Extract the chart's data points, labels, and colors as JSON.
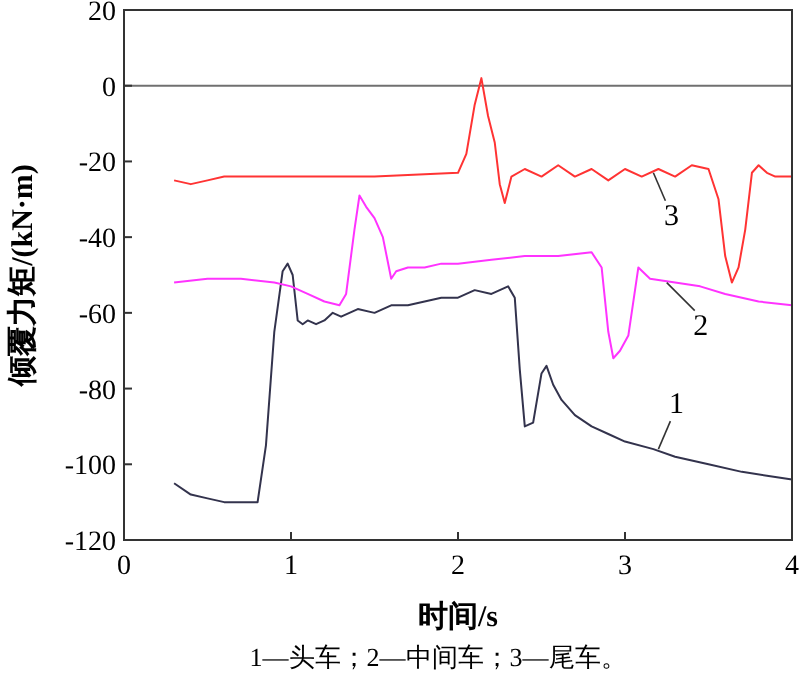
{
  "chart_data": {
    "type": "line",
    "xlabel": "时间/s",
    "ylabel": "倾覆力矩/(kN·m)",
    "xlim": [
      0,
      4
    ],
    "ylim": [
      -120,
      20
    ],
    "xticks": [
      0,
      1,
      2,
      3,
      4
    ],
    "yticks": [
      -120,
      -100,
      -80,
      -60,
      -40,
      -20,
      0,
      20
    ],
    "grid": false,
    "marker": "none",
    "line_style": "solid",
    "ref_lines": [
      {
        "axis": "y",
        "value": 0,
        "color": "#707070"
      }
    ],
    "series": [
      {
        "color": "#33334d",
        "x": [
          0.3,
          0.4,
          0.5,
          0.6,
          0.7,
          0.8,
          0.85,
          0.9,
          0.95,
          0.98,
          1.01,
          1.04,
          1.07,
          1.1,
          1.15,
          1.2,
          1.25,
          1.3,
          1.4,
          1.5,
          1.6,
          1.7,
          1.8,
          1.9,
          2.0,
          2.1,
          2.2,
          2.3,
          2.34,
          2.37,
          2.4,
          2.45,
          2.5,
          2.53,
          2.57,
          2.62,
          2.7,
          2.8,
          2.9,
          3.0,
          3.17,
          3.3,
          3.5,
          3.7,
          3.85,
          4.0
        ],
        "values": [
          -105,
          -108,
          -109,
          -110,
          -110,
          -110,
          -95,
          -65,
          -49,
          -47,
          -50,
          -62,
          -63,
          -62,
          -63,
          -62,
          -60,
          -61,
          -59,
          -60,
          -58,
          -58,
          -57,
          -56,
          -56,
          -54,
          -55,
          -53,
          -56,
          -75,
          -90,
          -89,
          -76,
          -74,
          -79,
          -83,
          -87,
          -90,
          -92,
          -94,
          -96,
          -98,
          -100,
          -102,
          -103,
          -104
        ]
      },
      {
        "color": "#ff33ff",
        "x": [
          0.3,
          0.5,
          0.7,
          0.9,
          1.0,
          1.1,
          1.2,
          1.29,
          1.33,
          1.38,
          1.41,
          1.45,
          1.5,
          1.55,
          1.6,
          1.63,
          1.7,
          1.8,
          1.9,
          2.0,
          2.2,
          2.4,
          2.6,
          2.8,
          2.86,
          2.9,
          2.93,
          2.97,
          3.02,
          3.08,
          3.15,
          3.3,
          3.45,
          3.6,
          3.8,
          4.0
        ],
        "values": [
          -52,
          -51,
          -51,
          -52,
          -53,
          -55,
          -57,
          -58,
          -55,
          -38,
          -29,
          -32,
          -35,
          -40,
          -51,
          -49,
          -48,
          -48,
          -47,
          -47,
          -46,
          -45,
          -45,
          -44,
          -48,
          -65,
          -72,
          -70,
          -66,
          -48,
          -51,
          -52,
          -53,
          -55,
          -57,
          -58
        ]
      },
      {
        "color": "#ff3333",
        "x": [
          0.3,
          0.4,
          0.5,
          0.6,
          0.8,
          1.0,
          1.5,
          2.0,
          2.05,
          2.1,
          2.14,
          2.18,
          2.22,
          2.25,
          2.28,
          2.32,
          2.4,
          2.5,
          2.6,
          2.7,
          2.8,
          2.9,
          3.0,
          3.1,
          3.2,
          3.3,
          3.4,
          3.5,
          3.56,
          3.6,
          3.64,
          3.68,
          3.72,
          3.76,
          3.8,
          3.85,
          3.9,
          4.0
        ],
        "values": [
          -25,
          -26,
          -25,
          -24,
          -24,
          -24,
          -24,
          -23,
          -18,
          -5,
          2,
          -8,
          -15,
          -26,
          -31,
          -24,
          -22,
          -24,
          -21,
          -24,
          -22,
          -25,
          -22,
          -24,
          -22,
          -24,
          -21,
          -22,
          -30,
          -45,
          -52,
          -48,
          -38,
          -23,
          -21,
          -23,
          -24,
          -24
        ]
      }
    ],
    "annotations": [
      {
        "text": "1",
        "x": 3.2,
        "y": -96
      },
      {
        "text": "2",
        "x": 3.25,
        "y": -52
      },
      {
        "text": "3",
        "x": 3.17,
        "y": -23
      },
      "1—头车；2—中间车；3—尾车。"
    ]
  }
}
